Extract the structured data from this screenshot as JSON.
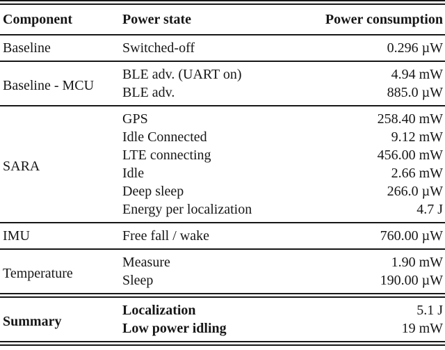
{
  "table": {
    "headers": {
      "component": "Component",
      "state": "Power state",
      "consumption": "Power consumption"
    },
    "sections": [
      {
        "component": "Baseline",
        "rows": [
          {
            "state": "Switched-off",
            "value": "0.296 µW"
          }
        ]
      },
      {
        "component": "Baseline - MCU",
        "rows": [
          {
            "state": "BLE adv. (UART on)",
            "value": "4.94 mW"
          },
          {
            "state": "BLE adv.",
            "value": "885.0 µW"
          }
        ]
      },
      {
        "component": "SARA",
        "rows": [
          {
            "state": "GPS",
            "value": "258.40 mW"
          },
          {
            "state": "Idle Connected",
            "value": "9.12 mW"
          },
          {
            "state": "LTE connecting",
            "value": "456.00 mW"
          },
          {
            "state": "Idle",
            "value": "2.66 mW"
          },
          {
            "state": "Deep sleep",
            "value": "266.0 µW"
          },
          {
            "state": "Energy per localization",
            "value": "4.7 J"
          }
        ]
      },
      {
        "component": "IMU",
        "rows": [
          {
            "state": "Free fall / wake",
            "value": "760.00 µW"
          }
        ]
      },
      {
        "component": "Temperature",
        "rows": [
          {
            "state": "Measure",
            "value": "1.90 mW"
          },
          {
            "state": "Sleep",
            "value": "190.00 µW"
          }
        ]
      },
      {
        "component": "Summary",
        "rows": [
          {
            "state": "Localization",
            "value": "5.1 J"
          },
          {
            "state": "Low power idling",
            "value": "19 mW"
          }
        ]
      }
    ],
    "colors": {
      "text": "#161616",
      "background": "#ffffff"
    }
  }
}
